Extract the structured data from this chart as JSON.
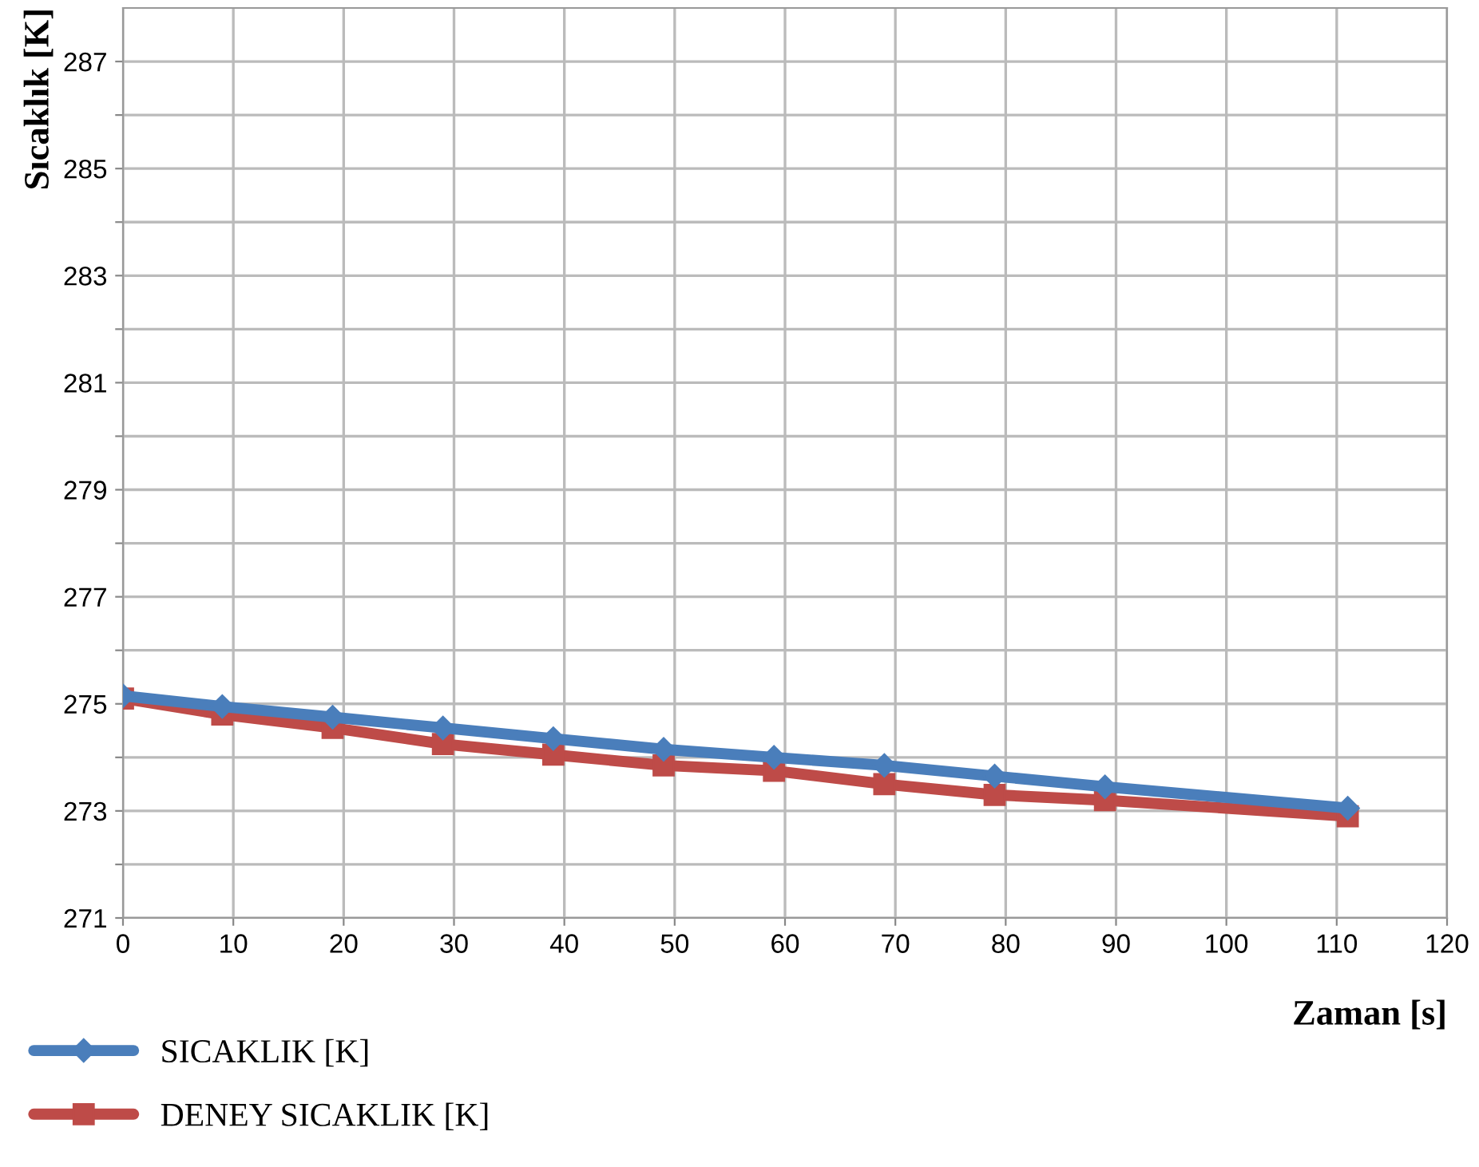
{
  "chart_data": {
    "type": "line",
    "xlabel": "Zaman [s]",
    "ylabel": "Sıcaklık [K]",
    "x": [
      0,
      9,
      19,
      29,
      39,
      49,
      59,
      69,
      79,
      89,
      111
    ],
    "series": [
      {
        "name": "SICAKLIK [K]",
        "color": "#4a7ebb",
        "marker": "diamond",
        "values": [
          275.15,
          274.95,
          274.75,
          274.55,
          274.35,
          274.15,
          274.0,
          273.85,
          273.65,
          273.45,
          273.05
        ]
      },
      {
        "name": "DENEY SICAKLIK [K]",
        "color": "#be4b48",
        "marker": "square",
        "values": [
          275.1,
          274.8,
          274.55,
          274.25,
          274.05,
          273.85,
          273.75,
          273.5,
          273.3,
          273.2,
          272.9
        ]
      }
    ],
    "xlim": [
      0,
      120
    ],
    "xticks": [
      0,
      10,
      20,
      30,
      40,
      50,
      60,
      70,
      80,
      90,
      100,
      110,
      120
    ],
    "ylim": [
      271,
      288
    ],
    "yticks": [
      271,
      {
        "value": 272,
        "label": null
      },
      273,
      {
        "value": 274,
        "label": null
      },
      275,
      {
        "value": 276,
        "label": null
      },
      277,
      {
        "value": 278,
        "label": null
      },
      279,
      {
        "value": 280,
        "label": null
      },
      281,
      {
        "value": 282,
        "label": null
      },
      283,
      {
        "value": 284,
        "label": null
      },
      285,
      {
        "value": 286,
        "label": null
      },
      287
    ],
    "grid": true,
    "legend": "bottom left",
    "line_style": "solid"
  }
}
